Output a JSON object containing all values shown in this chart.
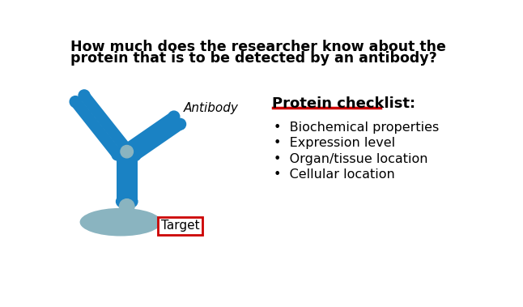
{
  "title_line1": "How much does the researcher know about the",
  "title_line2": "protein that is to be detected by an antibody?",
  "antibody_label": "Antibody",
  "target_label": "Target",
  "checklist_title": "Protein checklist:",
  "checklist_items": [
    "Biochemical properties",
    "Expression level",
    "Organ/tissue location",
    "Cellular location"
  ],
  "antibody_blue": "#1a82c4",
  "target_gray": "#8ab4c0",
  "bg_color": "#ffffff",
  "title_fontsize": 12.5,
  "label_fontsize": 11,
  "checklist_title_fontsize": 13,
  "checklist_item_fontsize": 11.5,
  "text_color": "#000000",
  "underline_color": "#cc0000",
  "box_color": "#cc0000"
}
